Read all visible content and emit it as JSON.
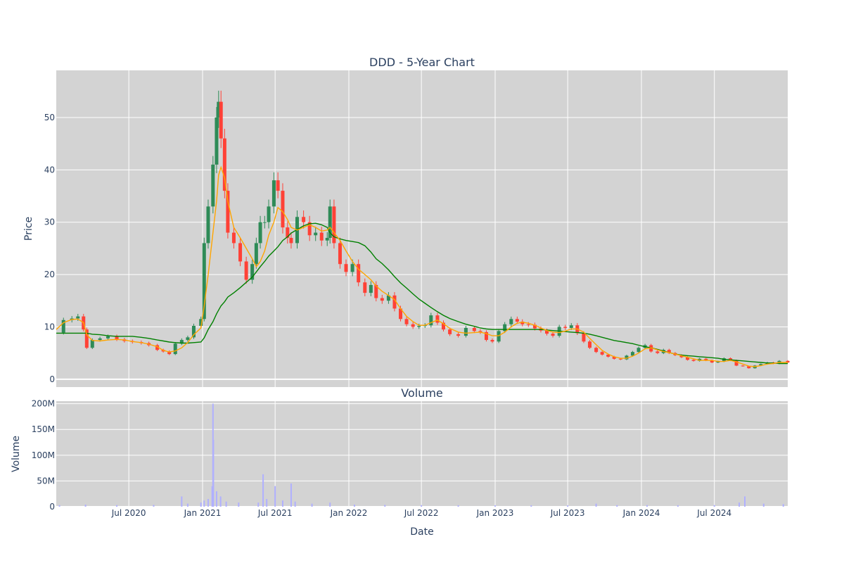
{
  "chart_data": [
    {
      "type": "candlestick",
      "title": "DDD - 5-Year Chart",
      "ylabel": "Price",
      "xlabel": "",
      "ylim": [
        -1.5,
        59
      ],
      "xlim": [
        "2020-01-02",
        "2024-12-31"
      ],
      "grid": true,
      "yticks": [
        0,
        10,
        20,
        30,
        40,
        50
      ],
      "colors": {
        "up": "#2e8b57",
        "down": "#ff4136",
        "ma_short": "#ffa500",
        "ma_long": "#008000",
        "plot_bg": "#d3d3d3"
      },
      "series": [
        {
          "kind": "price",
          "x": [
            "2020-01-02",
            "2020-01-20",
            "2020-02-10",
            "2020-02-25",
            "2020-03-10",
            "2020-03-18",
            "2020-04-01",
            "2020-04-20",
            "2020-05-10",
            "2020-06-01",
            "2020-06-20",
            "2020-07-10",
            "2020-08-01",
            "2020-08-20",
            "2020-09-10",
            "2020-09-25",
            "2020-10-10",
            "2020-10-25",
            "2020-11-10",
            "2020-11-25",
            "2020-12-10",
            "2020-12-28",
            "2021-01-05",
            "2021-01-15",
            "2021-01-27",
            "2021-02-05",
            "2021-02-10",
            "2021-02-16",
            "2021-02-25",
            "2021-03-05",
            "2021-03-20",
            "2021-04-05",
            "2021-04-20",
            "2021-05-05",
            "2021-05-15",
            "2021-05-25",
            "2021-06-05",
            "2021-06-15",
            "2021-06-28",
            "2021-07-08",
            "2021-07-20",
            "2021-08-01",
            "2021-08-10",
            "2021-08-25",
            "2021-09-10",
            "2021-09-25",
            "2021-10-10",
            "2021-10-25",
            "2021-11-08",
            "2021-11-15",
            "2021-11-25",
            "2021-12-10",
            "2021-12-25",
            "2022-01-10",
            "2022-01-25",
            "2022-02-10",
            "2022-02-25",
            "2022-03-10",
            "2022-03-25",
            "2022-04-10",
            "2022-04-25",
            "2022-05-10",
            "2022-05-25",
            "2022-06-10",
            "2022-06-25",
            "2022-07-10",
            "2022-07-25",
            "2022-08-10",
            "2022-08-25",
            "2022-09-10",
            "2022-10-01",
            "2022-10-20",
            "2022-11-10",
            "2022-11-25",
            "2022-12-10",
            "2022-12-25",
            "2023-01-10",
            "2023-01-25",
            "2023-02-10",
            "2023-02-25",
            "2023-03-10",
            "2023-03-25",
            "2023-04-10",
            "2023-04-25",
            "2023-05-10",
            "2023-05-25",
            "2023-06-10",
            "2023-06-25",
            "2023-07-10",
            "2023-07-25",
            "2023-08-10",
            "2023-08-25",
            "2023-09-10",
            "2023-09-25",
            "2023-10-10",
            "2023-10-25",
            "2023-11-10",
            "2023-11-25",
            "2023-12-10",
            "2023-12-25",
            "2024-01-10",
            "2024-01-25",
            "2024-02-10",
            "2024-02-25",
            "2024-03-10",
            "2024-03-25",
            "2024-04-10",
            "2024-04-25",
            "2024-05-10",
            "2024-05-25",
            "2024-06-10",
            "2024-06-25",
            "2024-07-10",
            "2024-07-25",
            "2024-08-10",
            "2024-08-25",
            "2024-09-10",
            "2024-09-25",
            "2024-10-10",
            "2024-10-25",
            "2024-11-10",
            "2024-11-25",
            "2024-12-10",
            "2024-12-31"
          ],
          "close": [
            8.9,
            11.3,
            11.6,
            12.0,
            9.5,
            6.0,
            7.5,
            7.8,
            8.2,
            7.6,
            7.3,
            7.1,
            6.9,
            6.5,
            5.6,
            5.3,
            4.8,
            6.8,
            7.5,
            8.0,
            10.2,
            11.5,
            26.0,
            33.0,
            41.0,
            50.0,
            53.0,
            46.0,
            36.0,
            28.0,
            26.0,
            22.5,
            19.0,
            22.0,
            26.0,
            30.0,
            30.0,
            33.0,
            38.0,
            36.0,
            29.0,
            27.0,
            26.0,
            31.0,
            30.0,
            27.5,
            28.0,
            26.5,
            27.0,
            33.0,
            26.0,
            22.0,
            20.5,
            22.0,
            18.5,
            16.5,
            18.0,
            15.5,
            15.0,
            16.0,
            13.5,
            11.5,
            10.5,
            10.0,
            10.2,
            10.3,
            12.2,
            10.8,
            9.5,
            8.6,
            8.3,
            9.8,
            9.2,
            9.0,
            7.5,
            7.2,
            9.2,
            10.5,
            11.5,
            11.0,
            10.5,
            10.4,
            9.7,
            9.3,
            8.7,
            8.3,
            10.0,
            9.8,
            10.3,
            8.8,
            7.2,
            6.0,
            5.2,
            4.7,
            4.3,
            3.9,
            3.8,
            4.5,
            5.2,
            6.0,
            6.5,
            5.3,
            5.0,
            5.6,
            5.0,
            4.6,
            4.2,
            3.7,
            3.5,
            3.9,
            3.6,
            3.2,
            3.4,
            4.0,
            3.6,
            2.6,
            2.5,
            2.1,
            2.6,
            2.9,
            3.2,
            3.0,
            3.5,
            3.2
          ],
          "ma50": [
            9.5,
            10.8,
            11.4,
            11.5,
            10.8,
            8.5,
            7.4,
            7.3,
            7.5,
            7.6,
            7.5,
            7.2,
            7.0,
            6.7,
            6.2,
            5.5,
            5.2,
            5.4,
            6.0,
            7.0,
            8.5,
            9.8,
            14.0,
            20.0,
            28.0,
            34.0,
            39.0,
            40.5,
            38.5,
            34.0,
            29.0,
            27.0,
            25.0,
            23.0,
            21.5,
            22.5,
            24.5,
            27.5,
            30.0,
            32.8,
            32.0,
            30.5,
            29.0,
            28.5,
            29.0,
            29.5,
            29.0,
            28.3,
            28.5,
            29.0,
            28.0,
            26.5,
            24.5,
            22.5,
            21.0,
            20.0,
            19.0,
            17.8,
            16.8,
            16.0,
            15.2,
            13.5,
            12.0,
            11.0,
            10.3,
            10.3,
            10.8,
            11.3,
            10.6,
            9.7,
            9.0,
            8.8,
            8.9,
            9.0,
            8.7,
            8.3,
            8.3,
            9.0,
            10.0,
            10.7,
            10.9,
            10.7,
            10.3,
            9.8,
            9.3,
            9.0,
            8.9,
            9.2,
            9.6,
            9.6,
            9.0,
            7.8,
            6.6,
            5.5,
            4.8,
            4.3,
            4.0,
            4.0,
            4.4,
            5.0,
            5.8,
            6.0,
            5.6,
            5.3,
            5.1,
            4.8,
            4.5,
            4.2,
            3.9,
            3.6,
            3.6,
            3.6,
            3.4,
            3.4,
            3.6,
            3.3,
            2.9,
            2.5,
            2.4,
            2.6,
            2.9,
            3.0,
            3.2,
            3.2
          ],
          "ma200": [
            8.8,
            8.8,
            8.8,
            8.8,
            8.8,
            8.8,
            8.6,
            8.5,
            8.3,
            8.2,
            8.2,
            8.2,
            8.0,
            7.8,
            7.5,
            7.3,
            7.1,
            7.0,
            6.9,
            6.9,
            7.0,
            7.1,
            7.9,
            9.5,
            11.0,
            12.5,
            13.2,
            14.0,
            14.8,
            15.7,
            16.5,
            17.5,
            18.5,
            19.5,
            20.5,
            21.5,
            22.5,
            23.5,
            24.5,
            25.3,
            26.5,
            27.2,
            27.9,
            28.6,
            29.3,
            29.7,
            29.8,
            29.5,
            29.0,
            28.0,
            27.2,
            26.8,
            26.5,
            26.3,
            26.1,
            25.5,
            24.3,
            23.0,
            22.1,
            20.9,
            19.6,
            18.4,
            17.4,
            16.3,
            15.3,
            14.5,
            13.7,
            12.9,
            12.2,
            11.6,
            11.0,
            10.5,
            10.1,
            9.8,
            9.6,
            9.5,
            9.5,
            9.5,
            9.5,
            9.5,
            9.5,
            9.5,
            9.5,
            9.5,
            9.4,
            9.3,
            9.2,
            9.1,
            9.0,
            8.9,
            8.8,
            8.6,
            8.3,
            8.0,
            7.7,
            7.4,
            7.2,
            7.0,
            6.8,
            6.5,
            6.2,
            6.0,
            5.7,
            5.4,
            5.1,
            4.8,
            4.6,
            4.5,
            4.4,
            4.3,
            4.2,
            4.1,
            4.0,
            3.8,
            3.7,
            3.6,
            3.5,
            3.4,
            3.3,
            3.2,
            3.1,
            3.1,
            3.0,
            3.0
          ]
        }
      ]
    },
    {
      "type": "bar",
      "title": "Volume",
      "xlabel": "Date",
      "ylabel": "Volume",
      "ylim": [
        0,
        205000000
      ],
      "yticks": [
        0,
        50000000,
        100000000,
        150000000,
        200000000
      ],
      "ytick_labels": [
        "0",
        "50M",
        "100M",
        "150M",
        "200M"
      ],
      "xticks": [
        "2020-07-01",
        "2021-01-01",
        "2021-07-01",
        "2022-01-01",
        "2022-07-01",
        "2023-01-01",
        "2023-07-01",
        "2024-01-01",
        "2024-07-01"
      ],
      "xtick_labels": [
        "Jul 2020",
        "Jan 2021",
        "Jul 2021",
        "Jan 2022",
        "Jul 2022",
        "Jan 2023",
        "Jul 2023",
        "Jan 2024",
        "Jul 2024"
      ],
      "color": "#b0b0ff",
      "series": [
        {
          "kind": "volume",
          "x": [
            "2020-01-10",
            "2020-03-15",
            "2020-06-01",
            "2020-09-01",
            "2020-11-10",
            "2020-11-25",
            "2020-12-28",
            "2021-01-05",
            "2021-01-15",
            "2021-01-25",
            "2021-01-27",
            "2021-01-28",
            "2021-02-05",
            "2021-02-15",
            "2021-03-01",
            "2021-04-01",
            "2021-05-20",
            "2021-06-01",
            "2021-06-10",
            "2021-07-01",
            "2021-07-20",
            "2021-08-10",
            "2021-08-20",
            "2021-10-01",
            "2021-11-15",
            "2022-01-15",
            "2022-04-01",
            "2022-07-01",
            "2022-10-01",
            "2023-01-01",
            "2023-04-01",
            "2023-07-01",
            "2023-09-10",
            "2023-11-01",
            "2024-01-15",
            "2024-04-01",
            "2024-07-01",
            "2024-09-01",
            "2024-09-15",
            "2024-11-01",
            "2024-12-20"
          ],
          "values": [
            3000000,
            4000000,
            3000000,
            3500000,
            20000000,
            6000000,
            8000000,
            12000000,
            15000000,
            40000000,
            200000000,
            130000000,
            30000000,
            20000000,
            10000000,
            8000000,
            8000000,
            63000000,
            15000000,
            40000000,
            12000000,
            45000000,
            10000000,
            6000000,
            8000000,
            4000000,
            3500000,
            3000000,
            2800000,
            2600000,
            2600000,
            2600000,
            6000000,
            3000000,
            3000000,
            2800000,
            3000000,
            8000000,
            20000000,
            6000000,
            5000000
          ]
        }
      ]
    }
  ]
}
